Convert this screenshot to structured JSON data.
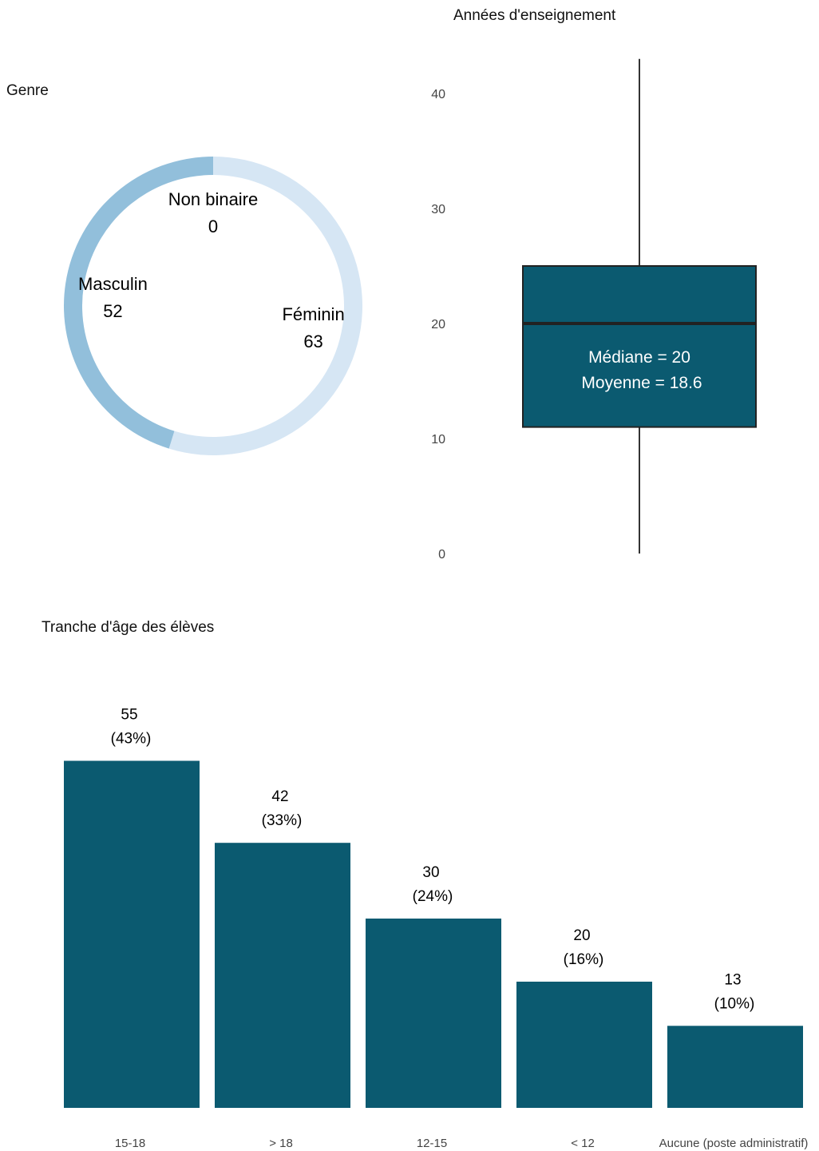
{
  "chart_data": [
    {
      "type": "pie",
      "title": "Genre",
      "donut": true,
      "slices": [
        {
          "label": "Non binaire",
          "value": 0,
          "color": "#c6dbef"
        },
        {
          "label": "Féminin",
          "value": 63,
          "color": "#d6e6f4"
        },
        {
          "label": "Masculin",
          "value": 52,
          "color": "#92bfdb"
        }
      ]
    },
    {
      "type": "box",
      "title": "Années d'enseignement",
      "ylim": [
        0,
        43
      ],
      "yticks": [
        0,
        10,
        20,
        30,
        40
      ],
      "stats": {
        "min": 0,
        "q1": 11,
        "median": 20,
        "q3": 25,
        "max": 43,
        "mean": 18.6
      },
      "median_label": "Médiane = 20",
      "mean_label": "Moyenne = 18.6",
      "color": "#0b5a70"
    },
    {
      "type": "bar",
      "title": "Tranche d'âge des élèves",
      "categories": [
        "15-18",
        "> 18",
        "12-15",
        "< 12",
        "Aucune (poste administratif)"
      ],
      "values": [
        55,
        42,
        30,
        20,
        13
      ],
      "value_labels": [
        "55",
        "42",
        "30",
        "20",
        "13"
      ],
      "percent_labels": [
        "(43%)",
        "(33%)",
        "(24%)",
        "(16%)",
        "(10%)"
      ],
      "color": "#0b5a70"
    }
  ]
}
